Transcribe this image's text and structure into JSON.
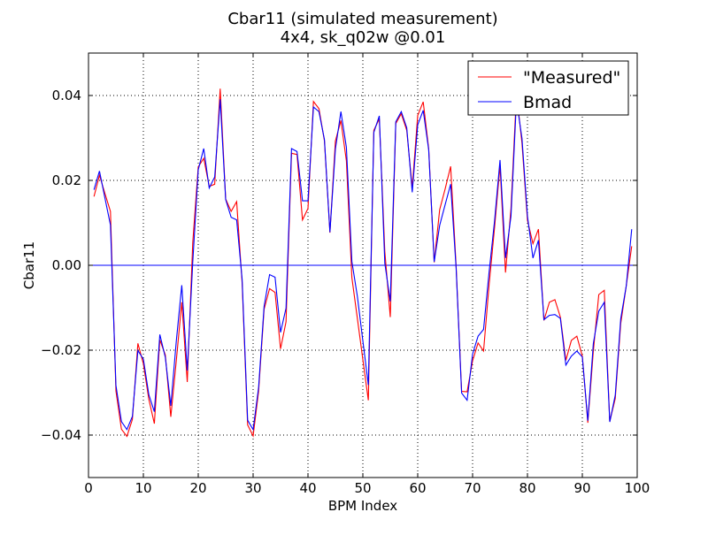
{
  "chart_data": {
    "type": "line",
    "title": "Cbar11 (simulated measurement)",
    "subtitle": "4x4, sk_q02w @0.01",
    "xlabel": "BPM Index",
    "ylabel": "Cbar11",
    "xlim": [
      0,
      100
    ],
    "ylim": [
      -0.05,
      0.05
    ],
    "xticks": [
      0,
      10,
      20,
      30,
      40,
      50,
      60,
      70,
      80,
      90,
      100
    ],
    "xtick_labels": [
      "0",
      "10",
      "20",
      "30",
      "40",
      "50",
      "60",
      "70",
      "80",
      "90",
      "100"
    ],
    "yticks": [
      -0.04,
      -0.02,
      0.0,
      0.02,
      0.04
    ],
    "ytick_labels": [
      "−0.04",
      "−0.02",
      "0.00",
      "0.02",
      "0.04"
    ],
    "grid": true,
    "legend_position": "top-right",
    "zero_line": true,
    "x": [
      1,
      2,
      3,
      4,
      5,
      6,
      7,
      8,
      9,
      10,
      11,
      12,
      13,
      14,
      15,
      16,
      17,
      18,
      19,
      20,
      21,
      22,
      23,
      24,
      25,
      26,
      27,
      28,
      29,
      30,
      31,
      32,
      33,
      34,
      35,
      36,
      37,
      38,
      39,
      40,
      41,
      42,
      43,
      44,
      45,
      46,
      47,
      48,
      49,
      50,
      51,
      52,
      53,
      54,
      55,
      56,
      57,
      58,
      59,
      60,
      61,
      62,
      63,
      64,
      65,
      66,
      67,
      68,
      69,
      70,
      71,
      72,
      73,
      74,
      75,
      76,
      77,
      78,
      79,
      80,
      81,
      82,
      83,
      84,
      85,
      86,
      87,
      88,
      89,
      90,
      91,
      92,
      93,
      94,
      95,
      96,
      97,
      98,
      99
    ],
    "series": [
      {
        "name": "\"Measured\"",
        "color": "#ff0000",
        "values": [
          0.0162,
          0.0212,
          0.0169,
          0.0127,
          -0.0296,
          -0.0386,
          -0.0403,
          -0.0363,
          -0.0184,
          -0.0232,
          -0.0316,
          -0.0373,
          -0.0176,
          -0.0211,
          -0.0357,
          -0.0225,
          -0.0087,
          -0.0275,
          0.0053,
          0.0232,
          0.0252,
          0.0186,
          0.0191,
          0.0416,
          0.0156,
          0.0127,
          0.015,
          -0.0042,
          -0.0376,
          -0.0402,
          -0.0297,
          -0.0104,
          -0.0055,
          -0.0064,
          -0.0197,
          -0.0133,
          0.0264,
          0.0261,
          0.0107,
          0.0134,
          0.0386,
          0.0369,
          0.0293,
          0.0077,
          0.0293,
          0.0341,
          0.0246,
          -0.0029,
          -0.0125,
          -0.0222,
          -0.0318,
          0.0318,
          0.0345,
          0.0033,
          -0.0122,
          0.0334,
          0.0357,
          0.0318,
          0.0183,
          0.0353,
          0.0385,
          0.0275,
          0.0007,
          0.0131,
          0.018,
          0.0233,
          -0.0002,
          -0.0297,
          -0.0298,
          -0.0225,
          -0.0183,
          -0.0202,
          -0.0047,
          0.0088,
          0.0235,
          -0.0017,
          0.0134,
          0.0406,
          0.0288,
          0.0106,
          0.0051,
          0.0085,
          -0.013,
          -0.0087,
          -0.0081,
          -0.0122,
          -0.0224,
          -0.0177,
          -0.0167,
          -0.0214,
          -0.0371,
          -0.0203,
          -0.0069,
          -0.0059,
          -0.0368,
          -0.0314,
          -0.0137,
          -0.0049,
          0.0045
        ]
      },
      {
        "name": "Bmad",
        "color": "#0000ff",
        "values": [
          0.0178,
          0.0222,
          0.0158,
          0.0095,
          -0.0283,
          -0.0368,
          -0.0387,
          -0.0356,
          -0.0201,
          -0.0221,
          -0.0305,
          -0.0345,
          -0.0163,
          -0.0217,
          -0.0331,
          -0.0179,
          -0.0047,
          -0.0248,
          0.0007,
          0.0225,
          0.0275,
          0.0182,
          0.0208,
          0.0391,
          0.0155,
          0.0113,
          0.0107,
          -0.0033,
          -0.0365,
          -0.0387,
          -0.0288,
          -0.0097,
          -0.0022,
          -0.0028,
          -0.0158,
          -0.0101,
          0.0275,
          0.0268,
          0.0152,
          0.0152,
          0.0373,
          0.0362,
          0.0296,
          0.0078,
          0.0274,
          0.0362,
          0.0278,
          0.0009,
          -0.0073,
          -0.0178,
          -0.0282,
          0.0313,
          0.0352,
          0.0005,
          -0.0085,
          0.0338,
          0.0362,
          0.0324,
          0.0172,
          0.0331,
          0.0365,
          0.0272,
          0.0008,
          0.0094,
          0.0143,
          0.0191,
          -0.0007,
          -0.0301,
          -0.0318,
          -0.0209,
          -0.0167,
          -0.0151,
          -0.0017,
          0.0104,
          0.0248,
          0.0017,
          0.0116,
          0.0389,
          0.0299,
          0.0116,
          0.0017,
          0.0059,
          -0.0128,
          -0.0118,
          -0.0116,
          -0.0125,
          -0.0235,
          -0.0214,
          -0.0202,
          -0.0216,
          -0.0366,
          -0.0185,
          -0.0108,
          -0.0087,
          -0.0369,
          -0.0306,
          -0.0126,
          -0.0049,
          0.0085
        ]
      }
    ]
  }
}
